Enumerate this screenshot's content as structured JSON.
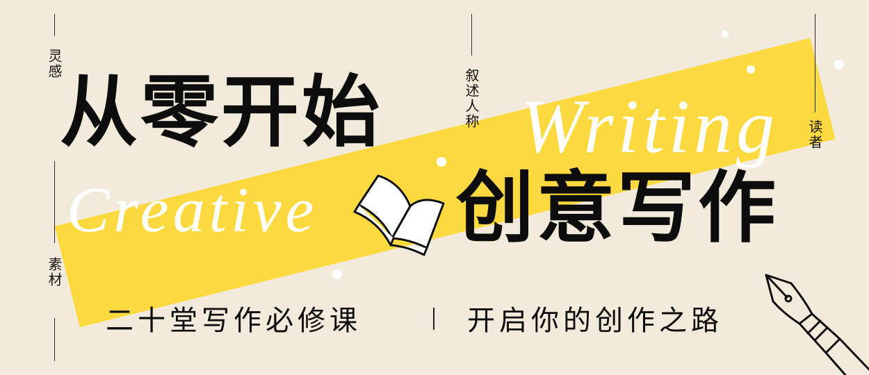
{
  "banner": {
    "title_line1": "从零开始",
    "title_line2": "创意写作",
    "script_word1": "Writing",
    "script_word2": "Creative",
    "tagline_left": "二十堂写作必修课",
    "tagline_right": "开启你的创作之路",
    "side_words": {
      "top_left": "灵感",
      "bottom_left": "素材",
      "top_center": "叙述人称",
      "right": "读者"
    },
    "colors": {
      "background": "#f2eadb",
      "stripe": "#fcd93f",
      "text": "#0d0d0d",
      "script_text": "#ffffff"
    },
    "icons": [
      "open-book-icon",
      "fountain-pen-icon"
    ]
  }
}
